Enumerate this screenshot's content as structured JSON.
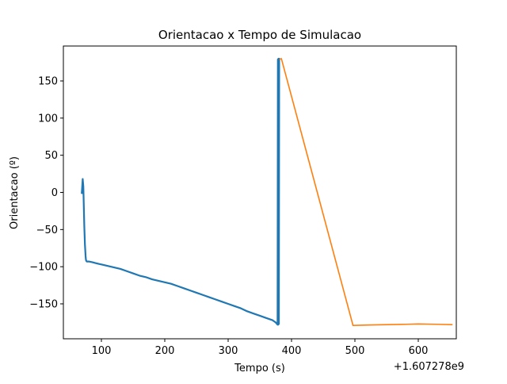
{
  "chart_data": {
    "type": "line",
    "title": "Orientacao x Tempo de Simulacao",
    "xlabel": "Tempo (s)",
    "ylabel": "Orientacao (º)",
    "x_offset_label": "+1.607278e9",
    "xlim": [
      40,
      660
    ],
    "ylim": [
      -197,
      197
    ],
    "xticks": [
      100,
      200,
      300,
      400,
      500,
      600
    ],
    "yticks": [
      -150,
      -100,
      -50,
      0,
      50,
      100,
      150
    ],
    "grid": false,
    "legend": "none",
    "series": [
      {
        "color": "#1f77b4",
        "x": [
          69,
          70.5,
          71.5,
          72,
          73,
          74,
          75,
          75.5,
          76,
          77,
          78,
          80,
          83,
          86,
          90,
          95,
          100,
          110,
          120,
          130,
          140,
          150,
          160,
          170,
          180,
          190,
          200,
          210,
          220,
          230,
          240,
          250,
          260,
          270,
          280,
          290,
          300,
          310,
          320,
          330,
          340,
          350,
          360,
          370,
          375,
          378,
          378.5,
          379,
          379.5,
          380,
          380.5,
          381
        ],
        "y": [
          -2,
          18,
          8,
          -10,
          -45,
          -70,
          -85,
          -90,
          -92,
          -93,
          -93,
          -93,
          -93.5,
          -94,
          -95,
          -96,
          -97,
          -99,
          -101,
          -103,
          -106,
          -109,
          -112,
          -114,
          -117,
          -119,
          -121,
          -123,
          -126,
          -129,
          -132,
          -135,
          -138,
          -141,
          -144,
          -147,
          -150,
          -153,
          -156,
          -160,
          -163,
          -166,
          -169,
          -172,
          -175,
          -178,
          179,
          -178,
          180,
          -177,
          180,
          179
        ]
      },
      {
        "color": "#ff7f0e",
        "x": [
          381,
          384,
          497,
          520,
          550,
          580,
          600,
          630,
          654
        ],
        "y": [
          179,
          180,
          -179,
          -178.5,
          -178,
          -177.5,
          -177,
          -177.5,
          -178
        ]
      }
    ]
  }
}
